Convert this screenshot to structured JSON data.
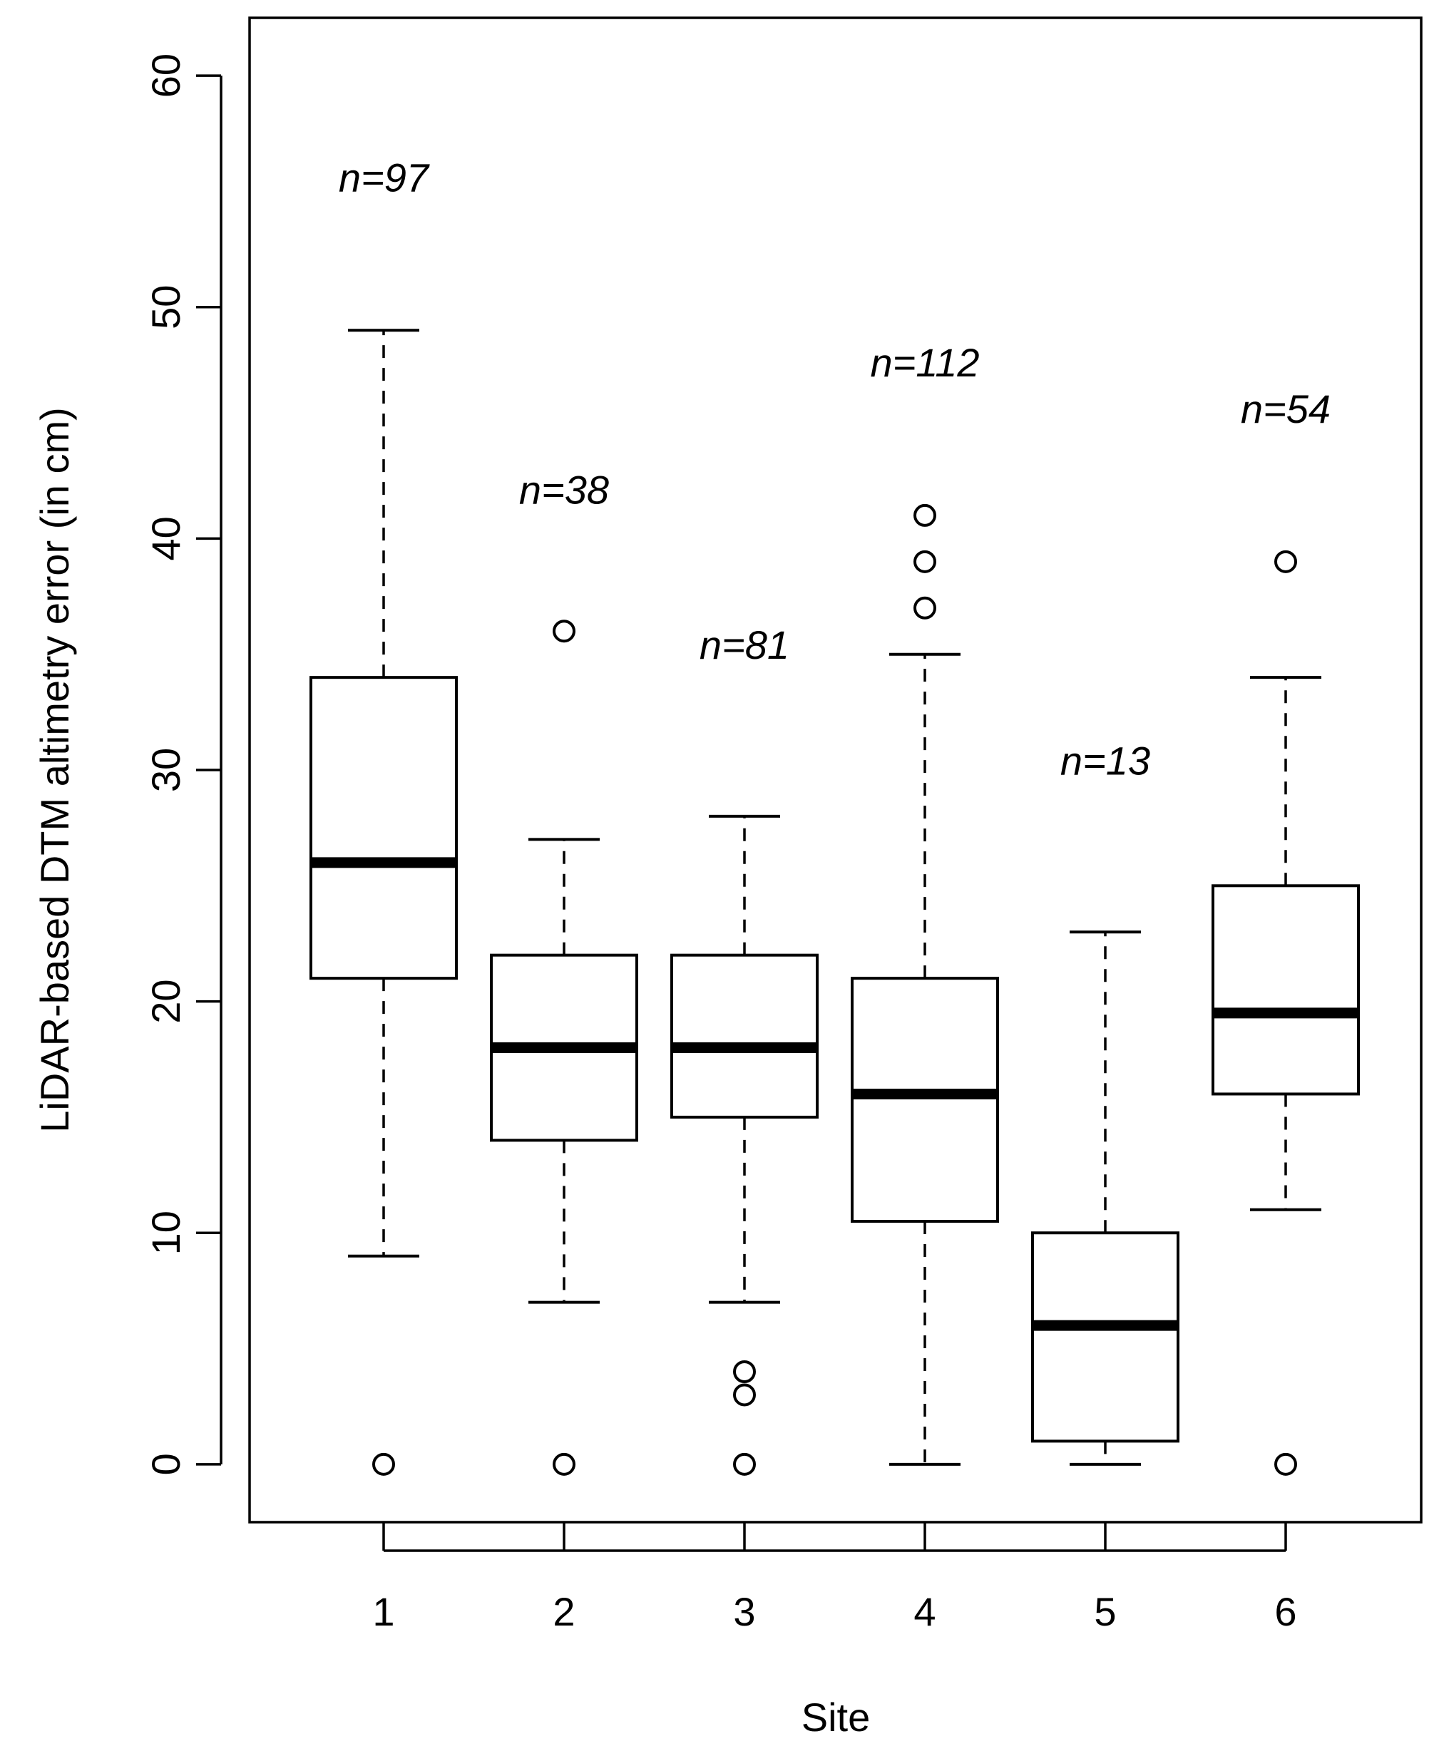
{
  "chart_data": {
    "type": "boxplot",
    "title": "",
    "xlabel": "Site",
    "ylabel": "LiDAR-based DTM altimetry error (in cm)",
    "ylim": [
      -2.5,
      62.5
    ],
    "yticks": [
      0,
      10,
      20,
      30,
      40,
      50,
      60
    ],
    "ytick_labels": [
      "0",
      "10",
      "20",
      "30",
      "40",
      "50",
      "60"
    ],
    "grid": false,
    "categories": [
      "1",
      "2",
      "3",
      "4",
      "5",
      "6"
    ],
    "boxes": [
      {
        "site": "1",
        "whisker_low": 9,
        "q1": 21,
        "median": 26,
        "q3": 34,
        "whisker_high": 49,
        "outliers": [
          0
        ],
        "n_label": "n=97",
        "n_label_y": 55
      },
      {
        "site": "2",
        "whisker_low": 7,
        "q1": 14,
        "median": 18,
        "q3": 22,
        "whisker_high": 27,
        "outliers": [
          0,
          36
        ],
        "n_label": "n=38",
        "n_label_y": 41.5
      },
      {
        "site": "3",
        "whisker_low": 7,
        "q1": 15,
        "median": 18,
        "q3": 22,
        "whisker_high": 28,
        "outliers": [
          0,
          3,
          4
        ],
        "n_label": "n=81",
        "n_label_y": 34.8
      },
      {
        "site": "4",
        "whisker_low": 0,
        "q1": 10.5,
        "median": 16,
        "q3": 21,
        "whisker_high": 35,
        "outliers": [
          37,
          39,
          41
        ],
        "n_label": "n=112",
        "n_label_y": 47
      },
      {
        "site": "5",
        "whisker_low": 0,
        "q1": 1,
        "median": 6,
        "q3": 10,
        "whisker_high": 23,
        "outliers": [],
        "n_label": "n=13",
        "n_label_y": 29.8
      },
      {
        "site": "6",
        "whisker_low": 11,
        "q1": 16,
        "median": 19.5,
        "q3": 25,
        "whisker_high": 34,
        "outliers": [
          0,
          39
        ],
        "n_label": "n=54",
        "n_label_y": 45
      }
    ]
  }
}
